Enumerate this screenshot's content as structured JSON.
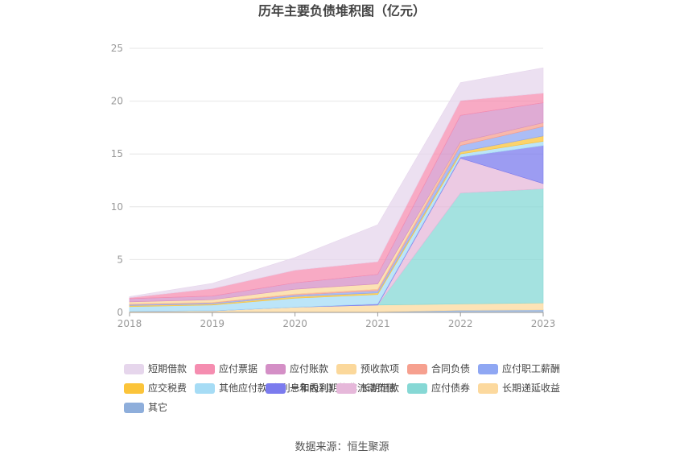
{
  "chart_data": {
    "type": "area",
    "stacked": true,
    "title": "历年主要负债堆积图（亿元）",
    "x": [
      "2018",
      "2019",
      "2020",
      "2021",
      "2022",
      "2023"
    ],
    "ylim": [
      0,
      25
    ],
    "yticks": [
      "0",
      "5",
      "10",
      "15",
      "20",
      "25"
    ],
    "grid": true,
    "legend_position": "bottom",
    "series": [
      {
        "name": "其它",
        "color": "#8eaedb",
        "values": [
          0.05,
          0.05,
          0.05,
          0.05,
          0.2,
          0.25
        ]
      },
      {
        "name": "长期递延收益",
        "color": "#fcd99e",
        "values": [
          0.05,
          0.1,
          0.45,
          0.65,
          0.6,
          0.65
        ]
      },
      {
        "name": "应付债券",
        "color": "#86d8d5",
        "values": [
          0,
          0,
          0,
          0,
          10.5,
          10.8
        ]
      },
      {
        "name": "长期借款",
        "color": "#e6b8da",
        "values": [
          0,
          0,
          0,
          0,
          3.3,
          0.5
        ]
      },
      {
        "name": "一年内到期的非流动负债",
        "color": "#7b7bee",
        "values": [
          0,
          0,
          0,
          0.1,
          0.1,
          3.6
        ]
      },
      {
        "name": "其他应付款(含利息和股利)",
        "color": "#a6dcf5",
        "values": [
          0.45,
          0.55,
          0.85,
          0.9,
          0.3,
          0.4
        ]
      },
      {
        "name": "应交税费",
        "color": "#fbc43a",
        "values": [
          0.1,
          0.1,
          0.15,
          0.15,
          0.2,
          0.5
        ]
      },
      {
        "name": "应付职工薪酬",
        "color": "#8fa7f3",
        "values": [
          0.1,
          0.1,
          0.15,
          0.2,
          0.6,
          0.9
        ]
      },
      {
        "name": "合同负债",
        "color": "#f6a08f",
        "values": [
          0.05,
          0.05,
          0.1,
          0.15,
          0.35,
          0.35
        ]
      },
      {
        "name": "预收款项",
        "color": "#fbd89b",
        "values": [
          0.2,
          0.25,
          0.45,
          0.5,
          0,
          0
        ]
      },
      {
        "name": "应付账款",
        "color": "#d48fc6",
        "values": [
          0.3,
          0.35,
          0.6,
          0.9,
          2.5,
          1.9
        ]
      },
      {
        "name": "应付票据",
        "color": "#f58db0",
        "values": [
          0.1,
          0.7,
          1.2,
          1.2,
          1.4,
          0.9
        ]
      },
      {
        "name": "短期借款",
        "color": "#e6d6ec",
        "values": [
          0.1,
          0.5,
          1.2,
          3.5,
          1.7,
          2.4
        ]
      }
    ],
    "legend_order": [
      "短期借款",
      "应付票据",
      "应付账款",
      "预收款项",
      "合同负债",
      "应付职工薪酬",
      "应交税费",
      "其他应付款(含利息和股利)",
      "一年内到期的非流动负债",
      "长期借款",
      "应付债券",
      "长期递延收益",
      "其它"
    ]
  },
  "source_text": "数据来源：恒生聚源"
}
